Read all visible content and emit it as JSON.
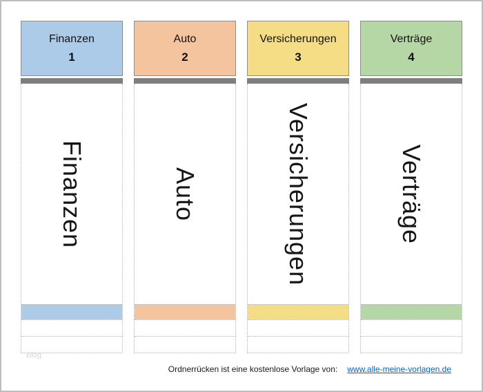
{
  "spines": [
    {
      "title": "Finanzen",
      "number": "1",
      "label": "Finanzen",
      "color": "#abcbe8"
    },
    {
      "title": "Auto",
      "number": "2",
      "label": "Auto",
      "color": "#f4c49e"
    },
    {
      "title": "Versicherungen",
      "number": "3",
      "label": "Versicherungen",
      "color": "#f5dd85"
    },
    {
      "title": "Verträge",
      "number": "4",
      "label": "Verträge",
      "color": "#b5d6a5"
    }
  ],
  "footer": {
    "text": "Ordnerrücken ist eine kostenlose Vorlage von:",
    "link": "www.alle-meine-vorlagen.de",
    "link_color": "#0563c1"
  },
  "watermark": {
    "text": "Blog"
  },
  "styles": {
    "ring_bar_color": "#7f7f7f",
    "dotted_line_color": "#b3b3b3",
    "page_border_color": "#bdbdbd",
    "header_border_color": "#8c8c8c"
  }
}
